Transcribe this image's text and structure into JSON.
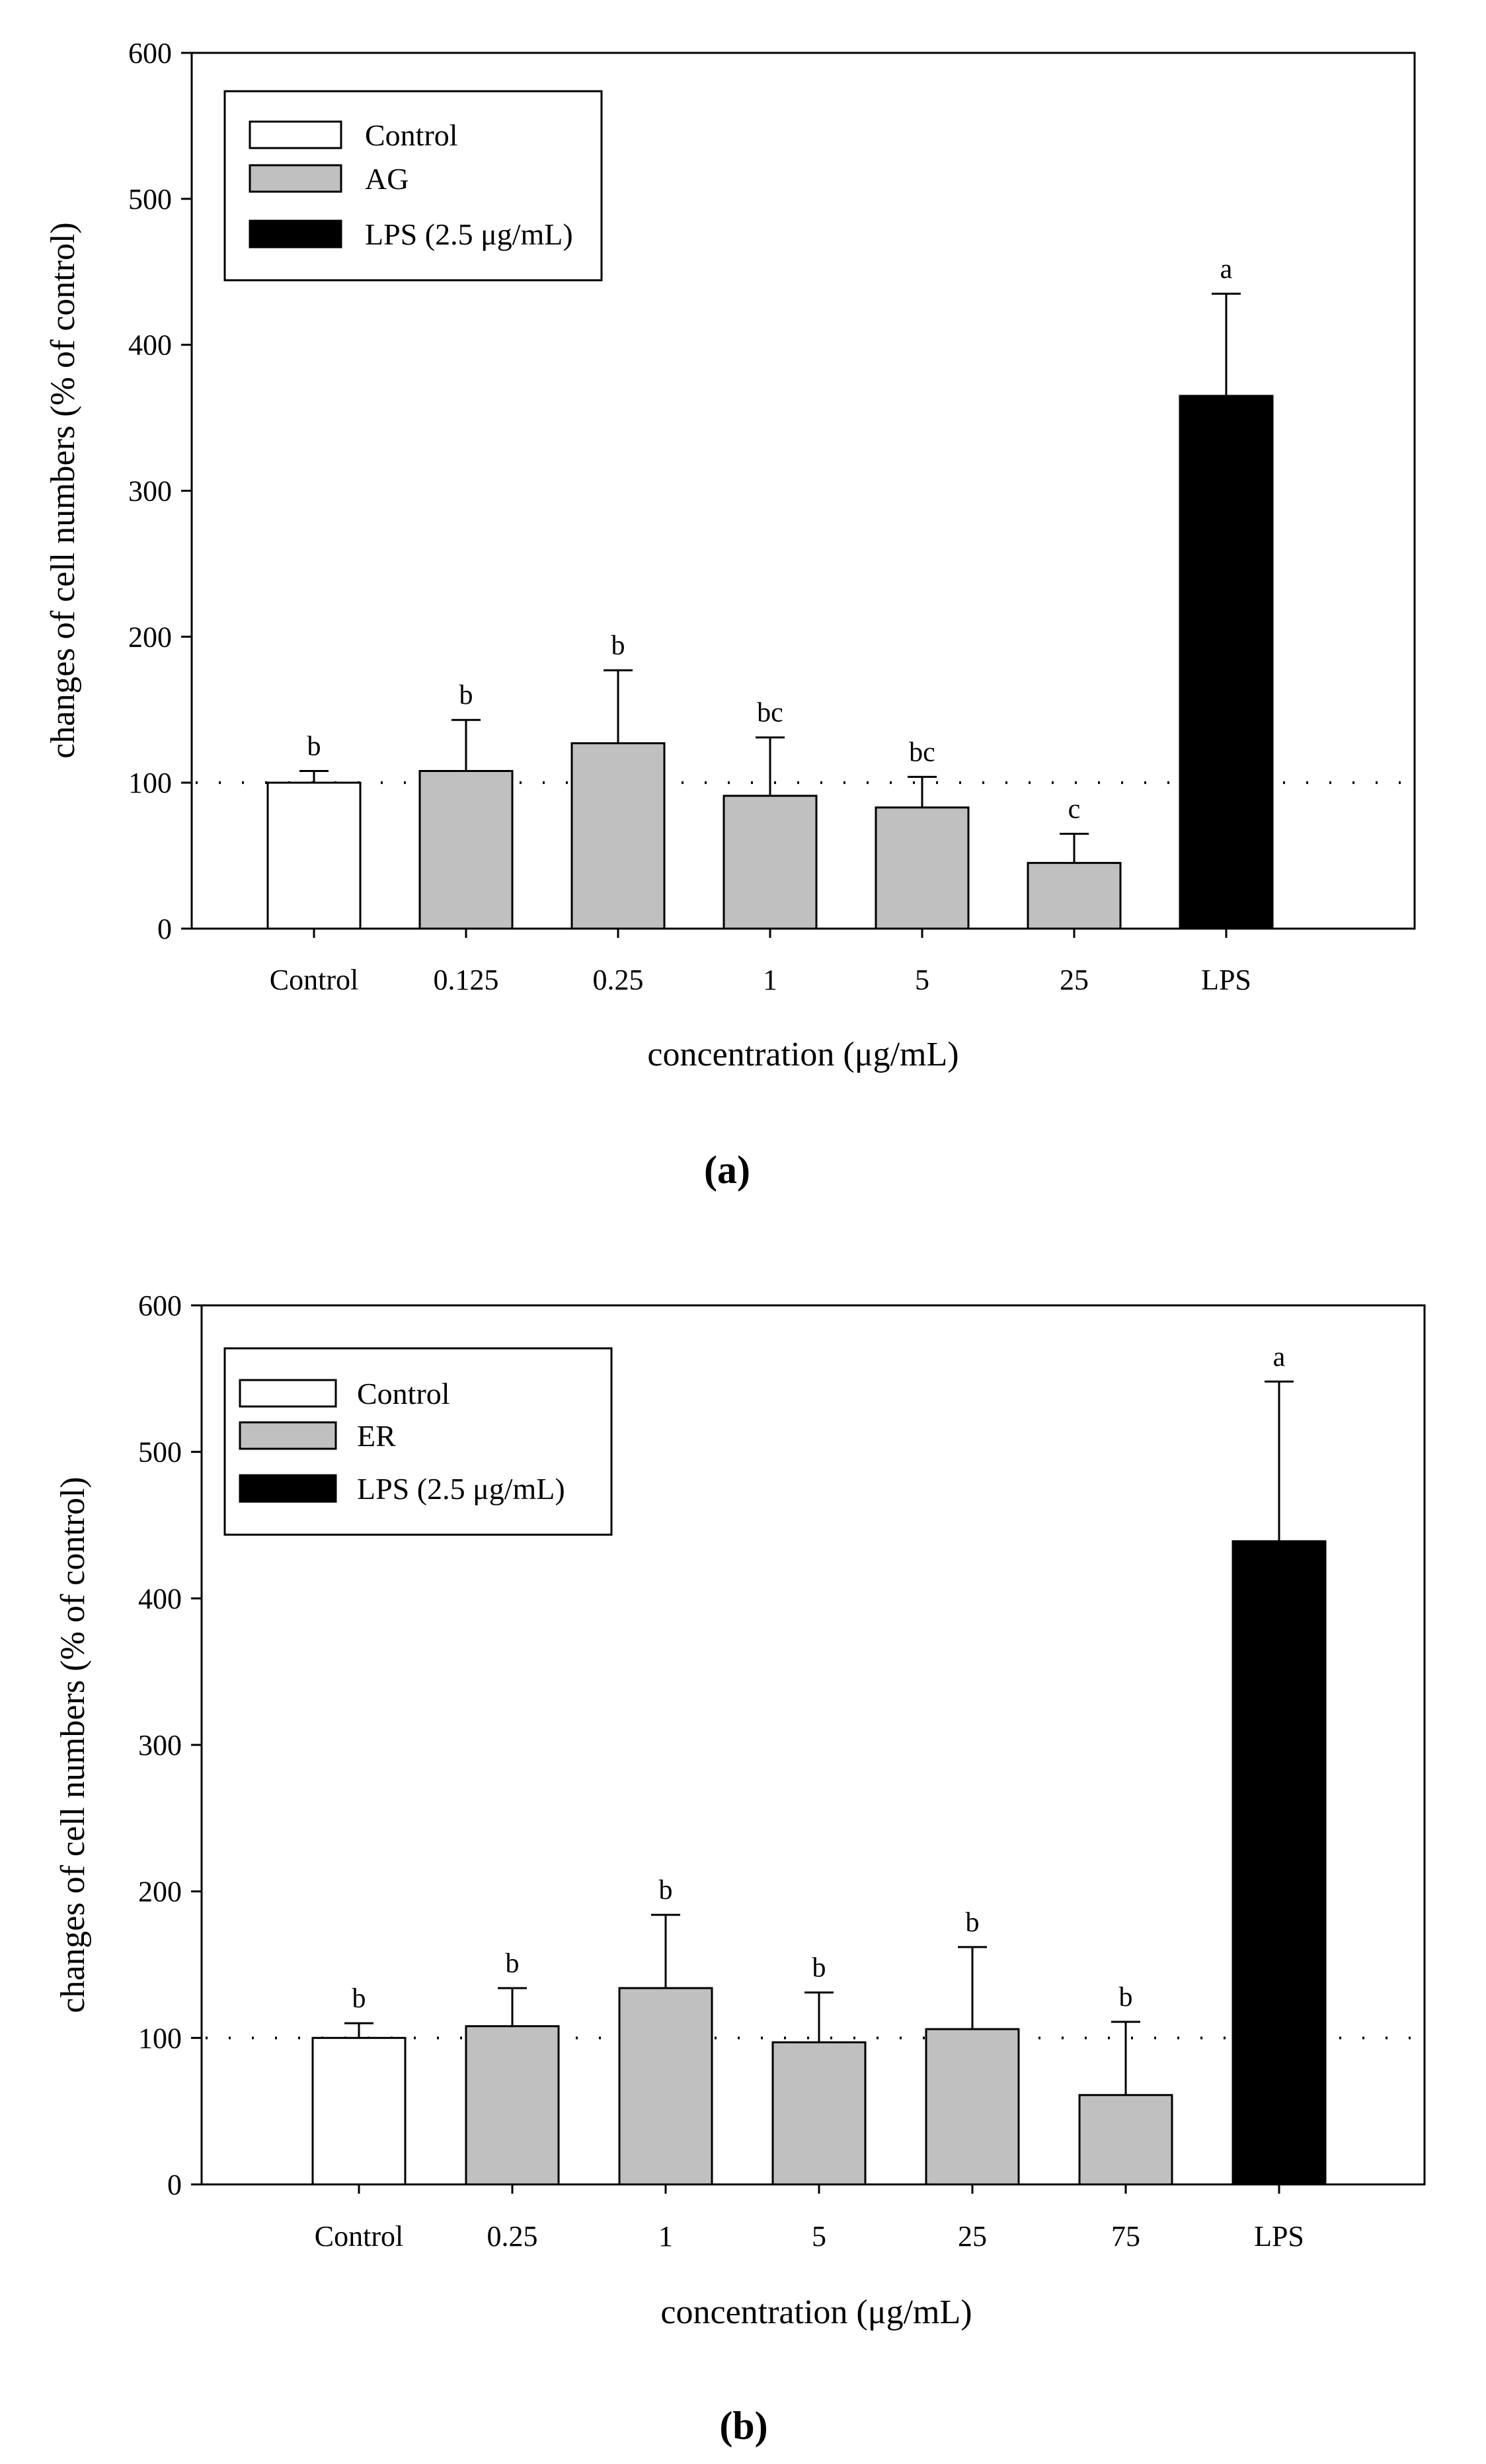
{
  "chart_data": [
    {
      "panel_label": "(a)",
      "type": "bar",
      "ylabel": "changes of cell numbers (% of control)",
      "xlabel": "concentration (μg/mL)",
      "ylim": [
        0,
        600
      ],
      "yticks": [
        "0",
        "100",
        "200",
        "300",
        "400",
        "500",
        "600"
      ],
      "reference_line": 100,
      "categories": [
        "Control",
        "0.125",
        "0.25",
        "1",
        "5",
        "25",
        "LPS"
      ],
      "values": [
        100,
        108,
        127,
        91,
        83,
        45,
        365
      ],
      "errors": [
        8,
        35,
        50,
        40,
        21,
        20,
        70
      ],
      "groups": [
        "control",
        "sample",
        "sample",
        "sample",
        "sample",
        "sample",
        "lps"
      ],
      "significance": [
        "b",
        "b",
        "b",
        "bc",
        "bc",
        "c",
        "a"
      ],
      "legend": [
        {
          "key": "control",
          "label": "Control",
          "color": "#ffffff"
        },
        {
          "key": "sample",
          "label": "AG",
          "color": "#c0c0c0"
        },
        {
          "key": "lps",
          "label": "LPS (2.5 μg/mL)",
          "color": "#000000"
        }
      ],
      "legend_position": "top-left"
    },
    {
      "panel_label": "(b)",
      "type": "bar",
      "ylabel": "changes of cell numbers (% of control)",
      "xlabel": "concentration (μg/mL)",
      "ylim": [
        0,
        600
      ],
      "yticks": [
        "0",
        "100",
        "200",
        "300",
        "400",
        "500",
        "600"
      ],
      "reference_line": 100,
      "categories": [
        "Control",
        "0.25",
        "1",
        "5",
        "25",
        "75",
        "LPS"
      ],
      "values": [
        100,
        108,
        134,
        97,
        106,
        61,
        439
      ],
      "errors": [
        10,
        26,
        50,
        34,
        56,
        50,
        109
      ],
      "groups": [
        "control",
        "sample",
        "sample",
        "sample",
        "sample",
        "sample",
        "lps"
      ],
      "significance": [
        "b",
        "b",
        "b",
        "b",
        "b",
        "b",
        "a"
      ],
      "legend": [
        {
          "key": "control",
          "label": "Control",
          "color": "#ffffff"
        },
        {
          "key": "sample",
          "label": "ER",
          "color": "#c0c0c0"
        },
        {
          "key": "lps",
          "label": "LPS (2.5 μg/mL)",
          "color": "#000000"
        }
      ],
      "legend_position": "top-left"
    }
  ]
}
